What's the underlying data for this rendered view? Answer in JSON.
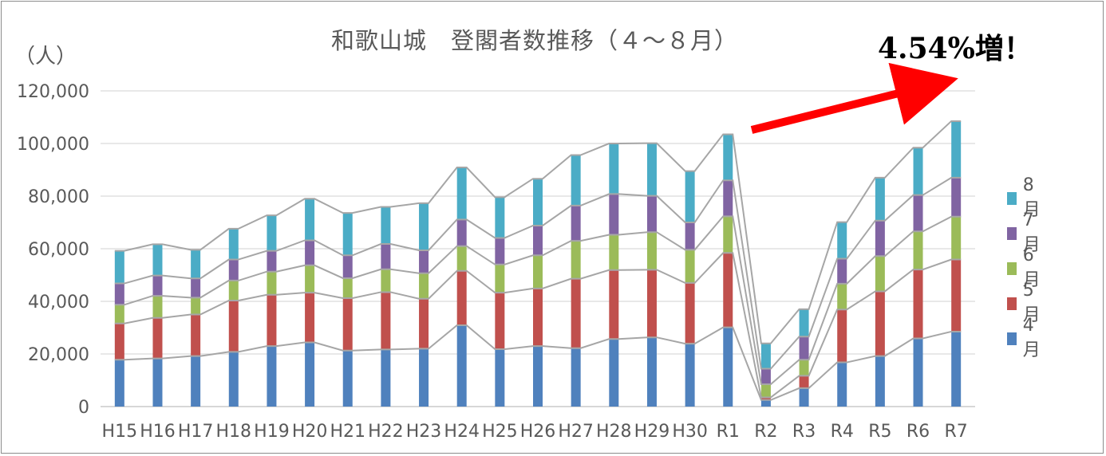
{
  "chart_data": {
    "type": "bar",
    "stacked": true,
    "title": "和歌山城　登閣者数推移（４～８月）",
    "ylabel": "（人）",
    "ylim": [
      0,
      120000
    ],
    "yticks": [
      0,
      20000,
      40000,
      60000,
      80000,
      100000,
      120000
    ],
    "ytick_labels": [
      "0",
      "20,000",
      "40,000",
      "60,000",
      "80,000",
      "100,000",
      "120,000"
    ],
    "grid": true,
    "series_lines": true,
    "legend_position": "right",
    "categories": [
      "H15",
      "H16",
      "H17",
      "H18",
      "H19",
      "H20",
      "H21",
      "H22",
      "H23",
      "H24",
      "H25",
      "H26",
      "H27",
      "H28",
      "H29",
      "H30",
      "R1",
      "R2",
      "R3",
      "R4",
      "R5",
      "R6",
      "R7"
    ],
    "series": [
      {
        "name": "4月",
        "color": "#4f81bd",
        "values": [
          17800,
          18300,
          19200,
          20800,
          23000,
          24400,
          21300,
          21700,
          22000,
          30900,
          21800,
          23000,
          22200,
          25700,
          26300,
          23900,
          30100,
          2500,
          7000,
          16800,
          19200,
          25900,
          28500
        ]
      },
      {
        "name": "5月",
        "color": "#c0504d",
        "values": [
          13800,
          15400,
          15800,
          19500,
          19500,
          18900,
          19900,
          21800,
          19000,
          20700,
          21500,
          21900,
          26400,
          26200,
          25700,
          23100,
          28300,
          1000,
          4700,
          20100,
          24600,
          26200,
          27400
        ]
      },
      {
        "name": "6月",
        "color": "#9bbb59",
        "values": [
          7100,
          8400,
          6400,
          7600,
          8800,
          10400,
          7600,
          8700,
          9700,
          9400,
          10700,
          12600,
          14400,
          13400,
          14300,
          12600,
          13900,
          5000,
          6100,
          9800,
          13400,
          14500,
          16300
        ]
      },
      {
        "name": "7月",
        "color": "#8064a2",
        "values": [
          8100,
          7700,
          7300,
          8000,
          7900,
          9500,
          8700,
          9600,
          8700,
          10100,
          10100,
          11300,
          13400,
          15500,
          13800,
          10400,
          13700,
          5900,
          8800,
          9500,
          13500,
          13800,
          14800
        ]
      },
      {
        "name": "8月",
        "color": "#4bacc6",
        "values": [
          12400,
          11900,
          10900,
          11700,
          13500,
          15800,
          16100,
          14100,
          17900,
          19800,
          15500,
          17800,
          19200,
          19200,
          20000,
          19500,
          17500,
          9600,
          10400,
          13900,
          16300,
          18000,
          21500
        ]
      }
    ],
    "annotation": "4.54%増！"
  }
}
